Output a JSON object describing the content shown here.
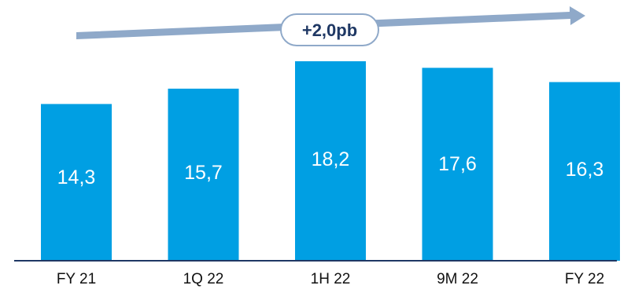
{
  "chart_data": {
    "type": "bar",
    "categories": [
      "FY 21",
      "1Q 22",
      "1H 22",
      "9M 22",
      "FY 22"
    ],
    "values": [
      14.3,
      15.7,
      18.2,
      17.6,
      16.3
    ],
    "value_labels": [
      "14,3",
      "15,7",
      "18,2",
      "17,6",
      "16,3"
    ],
    "title": "",
    "xlabel": "",
    "ylabel": "",
    "ylim": [
      0,
      18.2
    ],
    "grid": false,
    "legend": "none",
    "annotation": {
      "text": "+2,0pb",
      "style": "rising-arrow"
    }
  },
  "colors": {
    "bar": "#009fe3",
    "axis": "#1f3864",
    "arrow": "#8fa9c9",
    "annotation_text": "#1f3864"
  }
}
